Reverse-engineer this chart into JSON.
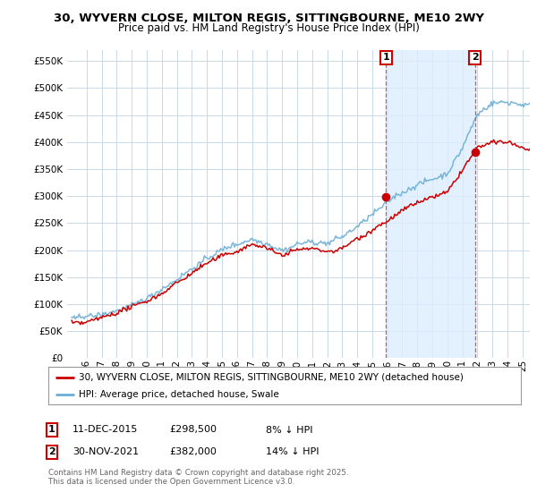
{
  "title": "30, WYVERN CLOSE, MILTON REGIS, SITTINGBOURNE, ME10 2WY",
  "subtitle": "Price paid vs. HM Land Registry's House Price Index (HPI)",
  "ylabel_ticks": [
    "£0",
    "£50K",
    "£100K",
    "£150K",
    "£200K",
    "£250K",
    "£300K",
    "£350K",
    "£400K",
    "£450K",
    "£500K",
    "£550K"
  ],
  "ytick_values": [
    0,
    50000,
    100000,
    150000,
    200000,
    250000,
    300000,
    350000,
    400000,
    450000,
    500000,
    550000
  ],
  "ylim": [
    0,
    570000
  ],
  "line1_color": "#cc0000",
  "line2_color": "#6baed6",
  "shade_color": "#ddeeff",
  "annotation1_label": "1",
  "annotation2_label": "2",
  "sale1_price": 298500,
  "sale2_price": 382000,
  "legend_line1": "30, WYVERN CLOSE, MILTON REGIS, SITTINGBOURNE, ME10 2WY (detached house)",
  "legend_line2": "HPI: Average price, detached house, Swale",
  "footer": "Contains HM Land Registry data © Crown copyright and database right 2025.\nThis data is licensed under the Open Government Licence v3.0.",
  "background_color": "#ffffff",
  "grid_color": "#c8d8e8",
  "title_fontsize": 9.5,
  "subtitle_fontsize": 8.5
}
